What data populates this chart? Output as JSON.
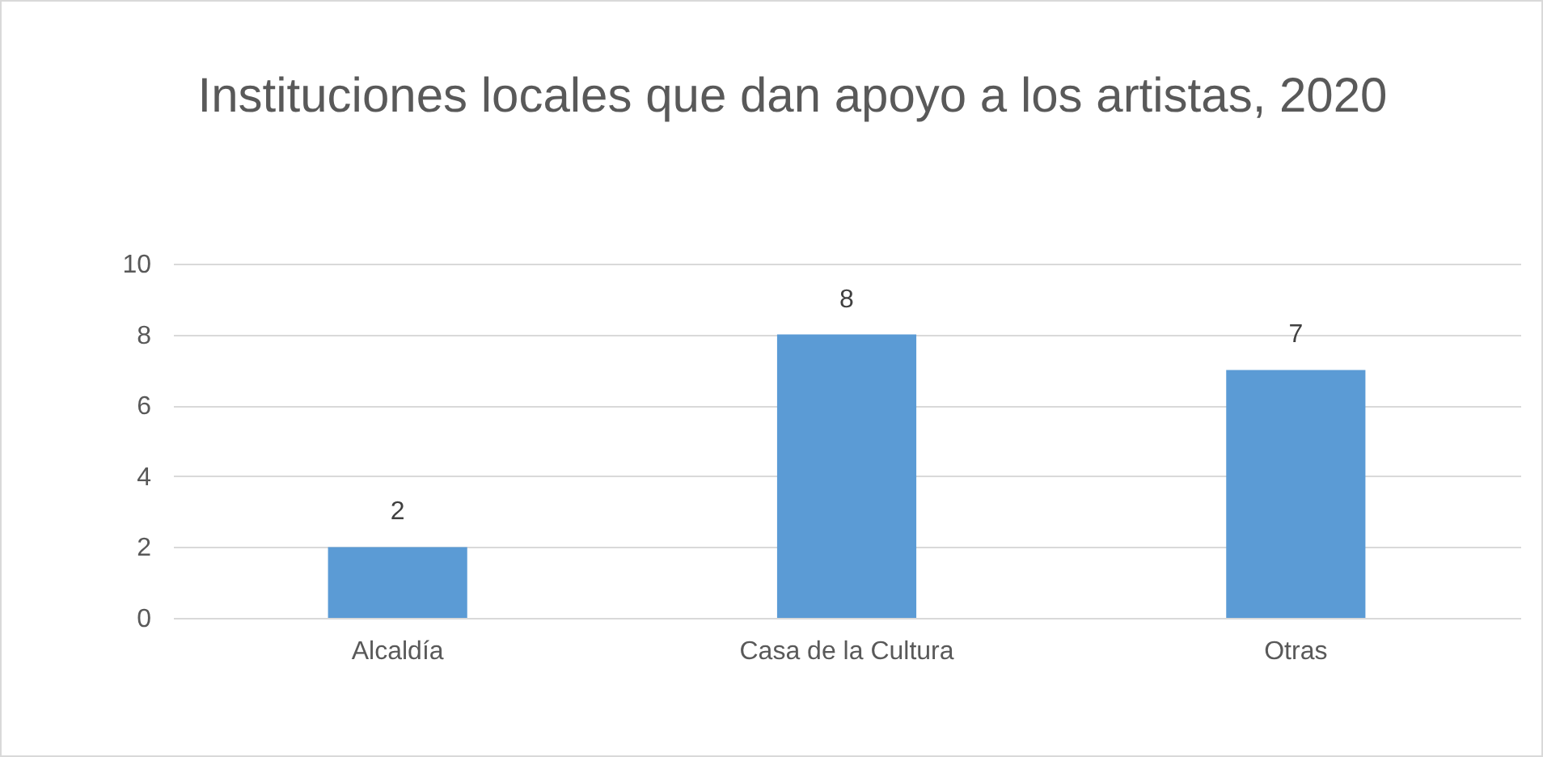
{
  "chart_data": {
    "type": "bar",
    "title": "Instituciones locales que dan apoyo a los artistas, 2020",
    "categories": [
      "Alcaldía",
      "Casa de la Cultura",
      "Otras"
    ],
    "values": [
      2,
      8,
      7
    ],
    "color": "#5b9bd5",
    "ylim": [
      0,
      10
    ],
    "yticks": [
      0,
      2,
      4,
      6,
      8,
      10
    ],
    "grid": "y",
    "data_labels": true
  }
}
